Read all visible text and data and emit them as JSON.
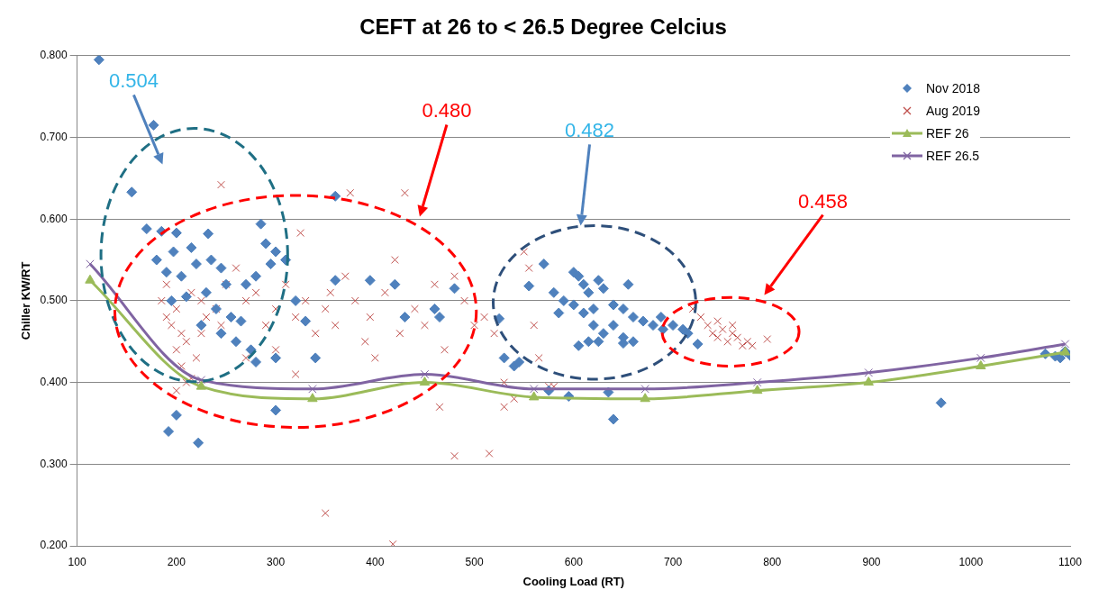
{
  "chart_data": {
    "type": "scatter",
    "title": "CEFT at 26 to < 26.5 Degree Celcius",
    "xlabel": "Cooling Load (RT)",
    "ylabel": "Chiller KW/RT",
    "xlim": [
      100,
      1100
    ],
    "xticks": [
      100,
      200,
      300,
      400,
      500,
      600,
      700,
      800,
      900,
      1000,
      1100
    ],
    "ylim": [
      0.2,
      0.8
    ],
    "yticks": [
      {
        "value": 0.2,
        "label": "0.200"
      },
      {
        "value": 0.3,
        "label": "0.300"
      },
      {
        "value": 0.4,
        "label": "0.400"
      },
      {
        "value": 0.5,
        "label": "0.500"
      },
      {
        "value": 0.6,
        "label": "0.600"
      },
      {
        "value": 0.7,
        "label": "0.700"
      },
      {
        "value": 0.8,
        "label": "0.800"
      }
    ],
    "grid": "y",
    "legend": "top right",
    "annotations": [
      "0.504",
      "0.480",
      "0.482",
      "0.458"
    ],
    "series": [
      {
        "name": "Nov 2018",
        "type": "scatter",
        "marker": "diamond",
        "color": "#4f81bd",
        "x": [
          122,
          177,
          155,
          170,
          185,
          200,
          232,
          285,
          360,
          197,
          215,
          180,
          190,
          205,
          220,
          235,
          245,
          250,
          230,
          210,
          195,
          240,
          255,
          265,
          225,
          245,
          260,
          290,
          300,
          310,
          295,
          280,
          270,
          320,
          330,
          275,
          280,
          300,
          192,
          200,
          222,
          300,
          340,
          360,
          395,
          420,
          430,
          460,
          465,
          480,
          525,
          530,
          540,
          545,
          555,
          570,
          580,
          590,
          600,
          605,
          610,
          615,
          600,
          610,
          620,
          625,
          630,
          640,
          650,
          655,
          660,
          670,
          680,
          690,
          700,
          710,
          715,
          620,
          630,
          640,
          650,
          605,
          615,
          625,
          650,
          660,
          725,
          575,
          595,
          640,
          635,
          970,
          1075,
          1085,
          1090,
          1095,
          1100,
          688,
          585
        ],
        "values": [
          0.795,
          0.715,
          0.633,
          0.588,
          0.585,
          0.583,
          0.582,
          0.594,
          0.628,
          0.56,
          0.565,
          0.55,
          0.535,
          0.53,
          0.545,
          0.55,
          0.54,
          0.52,
          0.51,
          0.505,
          0.5,
          0.49,
          0.48,
          0.475,
          0.47,
          0.46,
          0.45,
          0.57,
          0.56,
          0.55,
          0.545,
          0.53,
          0.52,
          0.5,
          0.475,
          0.44,
          0.425,
          0.43,
          0.34,
          0.36,
          0.326,
          0.366,
          0.43,
          0.525,
          0.525,
          0.52,
          0.48,
          0.49,
          0.48,
          0.515,
          0.478,
          0.43,
          0.42,
          0.425,
          0.518,
          0.545,
          0.51,
          0.5,
          0.535,
          0.53,
          0.52,
          0.51,
          0.495,
          0.485,
          0.49,
          0.525,
          0.515,
          0.495,
          0.49,
          0.52,
          0.48,
          0.475,
          0.47,
          0.465,
          0.47,
          0.465,
          0.46,
          0.47,
          0.46,
          0.47,
          0.455,
          0.445,
          0.45,
          0.45,
          0.448,
          0.45,
          0.447,
          0.39,
          0.383,
          0.355,
          0.388,
          0.375,
          0.435,
          0.432,
          0.43,
          0.438,
          0.433,
          0.48,
          0.485
        ]
      },
      {
        "name": "Aug 2019",
        "type": "scatter",
        "marker": "cross",
        "color": "#c0504d",
        "x": [
          185,
          190,
          195,
          200,
          205,
          210,
          200,
          205,
          210,
          200,
          215,
          220,
          225,
          230,
          215,
          225,
          240,
          250,
          245,
          260,
          270,
          280,
          290,
          300,
          310,
          320,
          325,
          330,
          340,
          350,
          355,
          360,
          370,
          375,
          380,
          390,
          395,
          400,
          410,
          420,
          425,
          430,
          440,
          450,
          460,
          470,
          480,
          490,
          500,
          510,
          520,
          530,
          540,
          550,
          555,
          480,
          515,
          350,
          418,
          465,
          530,
          300,
          320,
          270,
          245,
          190,
          560,
          565,
          575,
          580,
          728,
          735,
          740,
          745,
          750,
          755,
          760,
          765,
          770,
          775,
          780,
          795,
          745,
          760,
          720
        ],
        "values": [
          0.5,
          0.48,
          0.47,
          0.49,
          0.46,
          0.45,
          0.44,
          0.42,
          0.4,
          0.39,
          0.405,
          0.43,
          0.46,
          0.48,
          0.51,
          0.5,
          0.49,
          0.52,
          0.642,
          0.54,
          0.5,
          0.51,
          0.47,
          0.49,
          0.52,
          0.48,
          0.583,
          0.5,
          0.46,
          0.49,
          0.51,
          0.47,
          0.53,
          0.632,
          0.5,
          0.45,
          0.48,
          0.43,
          0.51,
          0.55,
          0.46,
          0.632,
          0.49,
          0.47,
          0.52,
          0.44,
          0.53,
          0.5,
          0.47,
          0.48,
          0.46,
          0.4,
          0.38,
          0.56,
          0.54,
          0.31,
          0.313,
          0.24,
          0.202,
          0.37,
          0.37,
          0.44,
          0.41,
          0.43,
          0.47,
          0.52,
          0.47,
          0.43,
          0.395,
          0.395,
          0.48,
          0.47,
          0.46,
          0.455,
          0.465,
          0.45,
          0.46,
          0.455,
          0.445,
          0.45,
          0.445,
          0.453,
          0.475,
          0.47,
          0.49
        ]
      },
      {
        "name": "REF 26",
        "type": "line",
        "marker": "triangle",
        "color": "#9bbb59",
        "x": [
          113,
          225,
          337,
          450,
          560,
          672,
          785,
          897,
          1010,
          1095
        ],
        "values": [
          0.525,
          0.395,
          0.38,
          0.4,
          0.382,
          0.38,
          0.39,
          0.4,
          0.42,
          0.437
        ]
      },
      {
        "name": "REF 26.5",
        "type": "line",
        "marker": "cross",
        "color": "#8064a2",
        "x": [
          113,
          225,
          337,
          450,
          560,
          672,
          785,
          897,
          1010,
          1095
        ],
        "values": [
          0.545,
          0.403,
          0.392,
          0.41,
          0.392,
          0.392,
          0.4,
          0.412,
          0.43,
          0.447
        ]
      }
    ]
  }
}
